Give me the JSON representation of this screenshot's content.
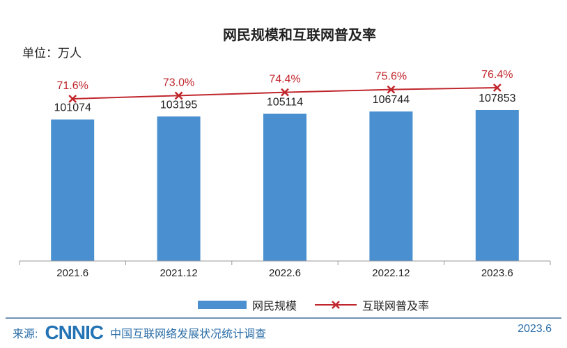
{
  "chart_data": {
    "type": "bar",
    "title": "网民规模和互联网普及率",
    "unit_label": "单位：万人",
    "categories": [
      "2021.6",
      "2021.12",
      "2022.6",
      "2022.12",
      "2023.6"
    ],
    "series": [
      {
        "name": "网民规模",
        "type": "bar",
        "values": [
          101074,
          103195,
          105114,
          106744,
          107853
        ],
        "color": "#4a90d0"
      },
      {
        "name": "互联网普及率",
        "type": "line",
        "values": [
          71.6,
          73.0,
          74.4,
          75.6,
          76.4
        ],
        "labels": [
          "71.6%",
          "73.0%",
          "74.4%",
          "75.6%",
          "76.4%"
        ],
        "color": "#c0272d",
        "marker": "x"
      }
    ],
    "grid": false,
    "legend": "bottom"
  },
  "footer": {
    "source_label": "来源:",
    "logo_text": "CNNIC",
    "source_text": "中国互联网络发展状况统计调查",
    "date": "2023.6"
  },
  "watermark": "CNNIC"
}
